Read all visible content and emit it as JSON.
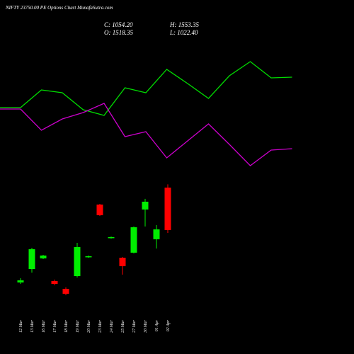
{
  "chart_data": {
    "type": "candlestick",
    "title": "NIFTY 23750.00 PE Options Chart MunafaSutra.com",
    "ohlc_texts": [
      "C: 1054.20",
      "H: 1553.35",
      "O: 1518.35",
      "L: 1022.40"
    ],
    "categories": [
      "12 Mar",
      "13 Mar",
      "16 Mar",
      "17 Mar",
      "18 Mar",
      "19 Mar",
      "20 Mar",
      "23 Mar",
      "24 Mar",
      "25 Mar",
      "27 Mar",
      "30 Mar",
      "01 Apr",
      "02 Apr"
    ],
    "open": [
      482,
      628,
      745,
      497,
      412,
      551,
      760,
      1333,
      969,
      752,
      807,
      1279,
      954,
      1518.35
    ],
    "high": [
      528,
      860,
      783,
      513,
      428,
      915,
      776,
      1340,
      984,
      760,
      1093,
      1395,
      1108,
      1553.35
    ],
    "low": [
      466,
      590,
      737,
      451,
      342,
      536,
      752,
      1209,
      961,
      567,
      799,
      1093,
      853,
      1022.4
    ],
    "close": [
      505,
      845,
      776,
      466,
      358,
      868,
      768,
      1217,
      977,
      660,
      1085,
      1364,
      1062,
      1054.2
    ],
    "up_color": "#00ee00",
    "down_color": "#ff0000",
    "ylim": [
      -300,
      3568
    ],
    "y2lim": [
      -250,
      250
    ],
    "lines": [
      {
        "color": "#00dd00",
        "axis": "y2",
        "values": [
          98,
          123,
          119,
          95,
          87,
          126,
          119,
          152,
          132,
          111,
          143,
          163,
          140,
          141
        ]
      },
      {
        "color": "#cc00cc",
        "axis": "y2",
        "values": [
          96,
          66,
          82,
          91,
          104,
          57,
          64,
          27,
          51,
          75,
          46,
          16,
          38,
          40
        ]
      }
    ]
  }
}
